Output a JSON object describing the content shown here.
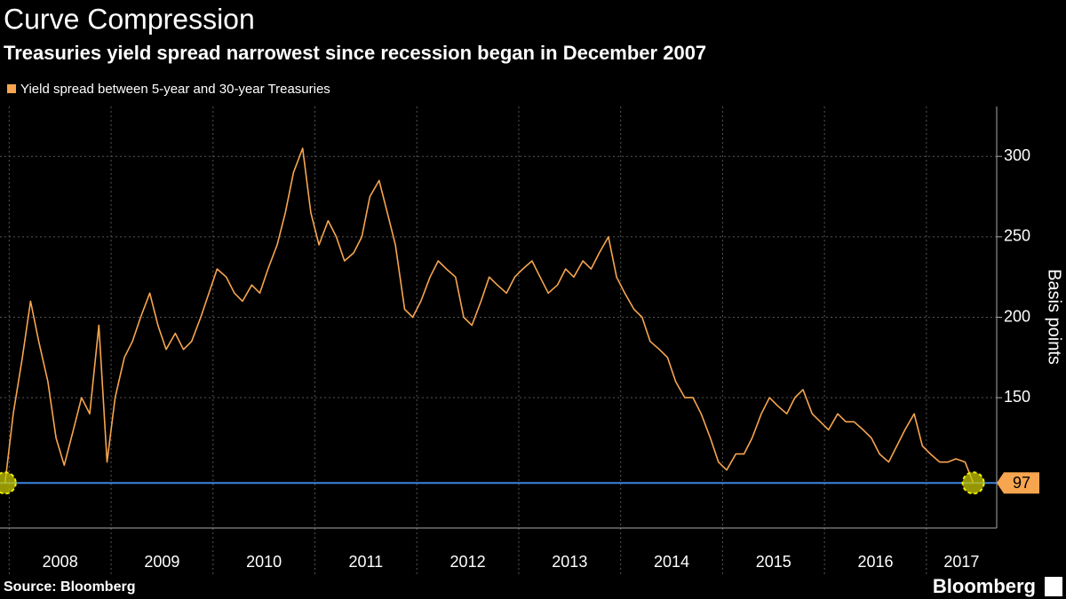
{
  "chart_data": {
    "type": "line",
    "title": "Curve Compression",
    "subtitle": "Treasuries yield spread narrowest since recession began in December 2007",
    "y_label": "Basis points",
    "source": "Source: Bloomberg",
    "brand": "Bloomberg",
    "x": [
      2007.96,
      2008.04,
      2008.13,
      2008.21,
      2008.29,
      2008.38,
      2008.46,
      2008.54,
      2008.63,
      2008.71,
      2008.79,
      2008.88,
      2008.96,
      2009.04,
      2009.13,
      2009.21,
      2009.29,
      2009.38,
      2009.46,
      2009.54,
      2009.63,
      2009.71,
      2009.79,
      2009.88,
      2009.96,
      2010.04,
      2010.13,
      2010.21,
      2010.29,
      2010.38,
      2010.46,
      2010.54,
      2010.63,
      2010.71,
      2010.79,
      2010.88,
      2010.96,
      2011.04,
      2011.13,
      2011.21,
      2011.29,
      2011.38,
      2011.46,
      2011.54,
      2011.63,
      2011.71,
      2011.79,
      2011.88,
      2011.96,
      2012.04,
      2012.13,
      2012.21,
      2012.29,
      2012.38,
      2012.46,
      2012.54,
      2012.63,
      2012.71,
      2012.79,
      2012.88,
      2012.96,
      2013.04,
      2013.13,
      2013.21,
      2013.29,
      2013.38,
      2013.46,
      2013.54,
      2013.63,
      2013.71,
      2013.79,
      2013.88,
      2013.96,
      2014.04,
      2014.13,
      2014.21,
      2014.29,
      2014.38,
      2014.46,
      2014.54,
      2014.63,
      2014.71,
      2014.79,
      2014.88,
      2014.96,
      2015.04,
      2015.13,
      2015.21,
      2015.29,
      2015.38,
      2015.46,
      2015.54,
      2015.63,
      2015.71,
      2015.79,
      2015.88,
      2015.96,
      2016.04,
      2016.13,
      2016.21,
      2016.29,
      2016.38,
      2016.46,
      2016.54,
      2016.63,
      2016.71,
      2016.79,
      2016.88,
      2016.96,
      2017.04,
      2017.13,
      2017.21,
      2017.29,
      2017.38,
      2017.46
    ],
    "series": [
      {
        "name": "Yield spread between 5-year and 30-year Treasuries",
        "color": "#f7a54f",
        "values": [
          97,
          140,
          175,
          210,
          185,
          160,
          125,
          108,
          130,
          150,
          140,
          195,
          110,
          150,
          175,
          185,
          200,
          215,
          195,
          180,
          190,
          180,
          185,
          200,
          215,
          230,
          225,
          215,
          210,
          220,
          215,
          230,
          245,
          265,
          290,
          305,
          265,
          245,
          260,
          250,
          235,
          240,
          250,
          275,
          285,
          265,
          245,
          205,
          200,
          210,
          225,
          235,
          230,
          225,
          200,
          195,
          210,
          225,
          220,
          215,
          225,
          230,
          235,
          225,
          215,
          220,
          230,
          225,
          235,
          230,
          240,
          250,
          225,
          215,
          205,
          200,
          185,
          180,
          175,
          160,
          150,
          150,
          140,
          125,
          110,
          105,
          115,
          115,
          125,
          140,
          150,
          145,
          140,
          150,
          155,
          140,
          135,
          130,
          140,
          135,
          135,
          130,
          125,
          115,
          110,
          120,
          130,
          140,
          120,
          115,
          110,
          110,
          112,
          110,
          97
        ]
      }
    ],
    "reference_line": 97,
    "xlim": [
      2007.91,
      2017.69
    ],
    "xticks": [
      2008,
      2009,
      2010,
      2011,
      2012,
      2013,
      2014,
      2015,
      2016,
      2017
    ],
    "ylim": [
      69,
      331
    ],
    "yticks": [
      150,
      200,
      250,
      300
    ],
    "grid": true
  }
}
